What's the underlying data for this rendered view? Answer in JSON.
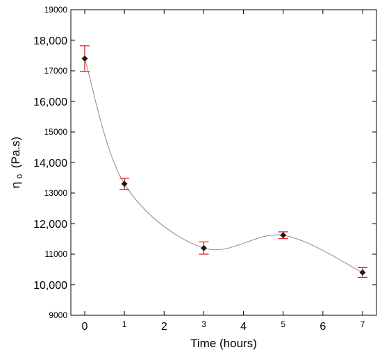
{
  "chart_data": {
    "type": "scatter",
    "title": "",
    "xlabel": "Time (hours)",
    "ylabel_main": "η",
    "ylabel_sub": "0",
    "ylabel_unit": "(Pa.s)",
    "xlim": [
      -0.35,
      7.35
    ],
    "ylim": [
      9000,
      19000
    ],
    "x_ticks": [
      {
        "value": 0,
        "label": "0",
        "size": "large"
      },
      {
        "value": 1,
        "label": "1",
        "size": "small"
      },
      {
        "value": 2,
        "label": "2",
        "size": "large"
      },
      {
        "value": 3,
        "label": "3",
        "size": "small"
      },
      {
        "value": 4,
        "label": "4",
        "size": "large"
      },
      {
        "value": 5,
        "label": "5",
        "size": "small"
      },
      {
        "value": 6,
        "label": "6",
        "size": "large"
      },
      {
        "value": 7,
        "label": "7",
        "size": "small"
      }
    ],
    "y_ticks": [
      {
        "value": 9000,
        "label": "9000",
        "size": "small"
      },
      {
        "value": 10000,
        "label": "10,000",
        "size": "large"
      },
      {
        "value": 11000,
        "label": "11000",
        "size": "small"
      },
      {
        "value": 12000,
        "label": "12,000",
        "size": "large"
      },
      {
        "value": 13000,
        "label": "13000",
        "size": "small"
      },
      {
        "value": 14000,
        "label": "14,000",
        "size": "large"
      },
      {
        "value": 15000,
        "label": "15000",
        "size": "small"
      },
      {
        "value": 16000,
        "label": "16,000",
        "size": "large"
      },
      {
        "value": 17000,
        "label": "17000",
        "size": "small"
      },
      {
        "value": 18000,
        "label": "18,000",
        "size": "large"
      },
      {
        "value": 19000,
        "label": "19000",
        "size": "small"
      }
    ],
    "series": [
      {
        "points": [
          {
            "x": 0,
            "y": 17400,
            "err": 420
          },
          {
            "x": 1,
            "y": 13300,
            "err": 180
          },
          {
            "x": 3,
            "y": 11200,
            "err": 200
          },
          {
            "x": 5,
            "y": 11620,
            "err": 110
          },
          {
            "x": 7,
            "y": 10400,
            "err": 160
          }
        ]
      }
    ],
    "colors": {
      "marker": "#1a1a1a",
      "error_bar": "#e0201b",
      "fit_line": "#8a8a8a",
      "axis": "#000000"
    },
    "fit_line": "smooth curve"
  }
}
